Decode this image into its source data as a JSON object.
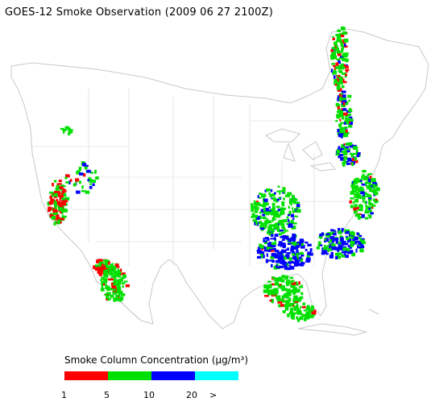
{
  "title": "GOES-12 Smoke Observation (2009 06 27  2100Z)",
  "legend": {
    "title": "Smoke Column Concentration (μg/m³)",
    "bins": [
      {
        "from": "1",
        "to": "5",
        "color": "#ff0000"
      },
      {
        "from": "5",
        "to": "10",
        "color": "#00e000"
      },
      {
        "from": "10",
        "to": "20",
        "color": "#0000ff"
      },
      {
        "from": "20",
        "to": ">",
        "color": "#00ffff"
      }
    ],
    "tick_labels": [
      "1",
      "5",
      "10",
      "20",
      ">"
    ]
  }
}
